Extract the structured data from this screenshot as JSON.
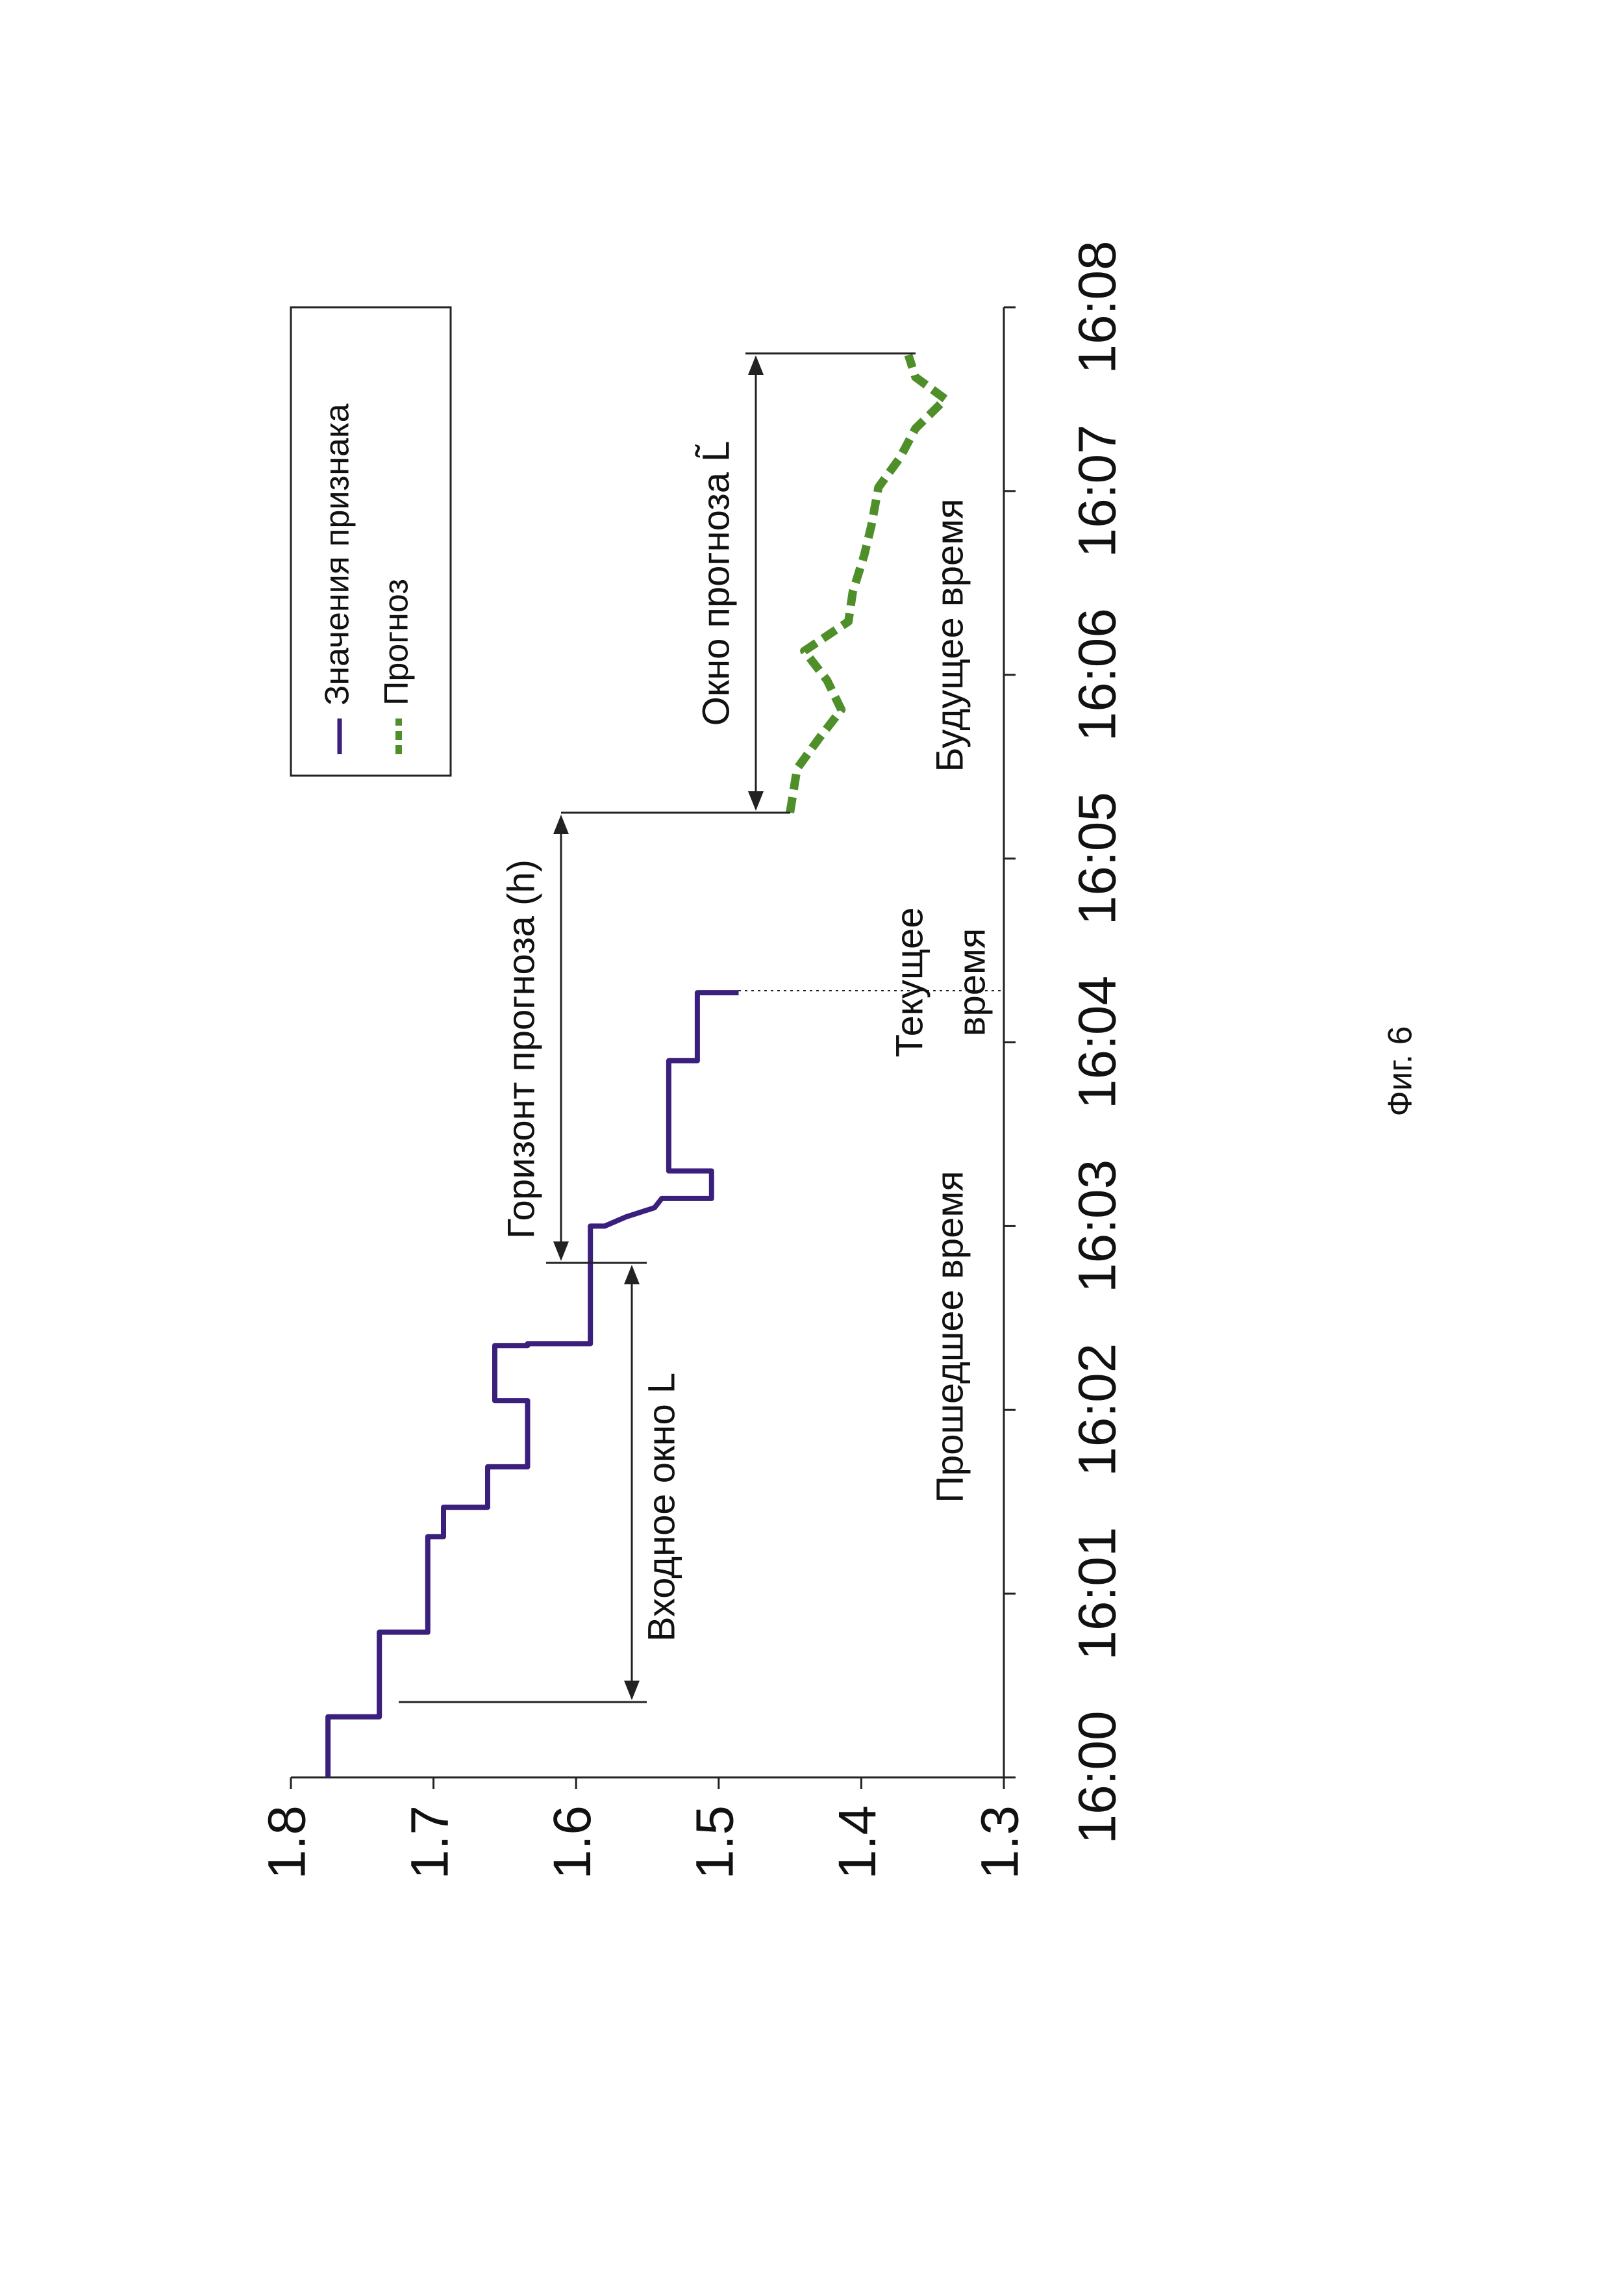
{
  "chart_data": {
    "type": "line",
    "xlim": [
      0,
      8
    ],
    "xticks": [
      {
        "value": 0,
        "label": "16:00"
      },
      {
        "value": 1,
        "label": "16:01"
      },
      {
        "value": 2,
        "label": "16:02"
      },
      {
        "value": 3,
        "label": "16:03"
      },
      {
        "value": 4,
        "label": "16:04"
      },
      {
        "value": 5,
        "label": "16:05"
      },
      {
        "value": 6,
        "label": "16:06"
      },
      {
        "value": 7,
        "label": "16:07"
      },
      {
        "value": 8,
        "label": "16:08"
      }
    ],
    "ylim": [
      1.3,
      1.8
    ],
    "yticks": [
      1.8,
      1.7,
      1.6,
      1.5,
      1.4,
      1.3
    ],
    "legend": "upper right",
    "series": [
      {
        "name": "Значения признака",
        "color": "#3a1f7d",
        "dashed": false,
        "x": [
          0,
          0.33,
          0.33,
          0.79,
          0.79,
          1.31,
          1.31,
          1.47,
          1.47,
          1.69,
          1.69,
          2.05,
          2.05,
          2.35,
          2.35,
          2.36,
          2.36,
          3.0,
          3.0,
          3.05,
          3.1,
          3.15,
          3.15,
          3.3,
          3.3,
          3.9,
          3.9,
          4.27,
          4.27
        ],
        "values": [
          1.774,
          1.774,
          1.738,
          1.738,
          1.704,
          1.704,
          1.693,
          1.693,
          1.662,
          1.662,
          1.634,
          1.634,
          1.657,
          1.657,
          1.634,
          1.634,
          1.59,
          1.59,
          1.58,
          1.565,
          1.545,
          1.54,
          1.505,
          1.505,
          1.535,
          1.535,
          1.515,
          1.515,
          1.486
        ]
      },
      {
        "name": "Прогноз",
        "color": "#4f8f2a",
        "dashed": true,
        "x": [
          5.25,
          5.49,
          5.65,
          5.81,
          5.97,
          6.13,
          6.29,
          6.45,
          6.65,
          6.81,
          7.02,
          7.18,
          7.34,
          7.5,
          7.62,
          7.74
        ],
        "values": [
          1.45,
          1.445,
          1.43,
          1.414,
          1.424,
          1.44,
          1.409,
          1.406,
          1.398,
          1.393,
          1.388,
          1.373,
          1.362,
          1.341,
          1.362,
          1.367
        ]
      }
    ],
    "annotations": {
      "input_window": "Входное окно L",
      "horizon": "Горизонт прогноза (h)",
      "forecast_window": "Окно прогноза L̃",
      "past": "Прошедшее время",
      "current": [
        "Текущее",
        "время"
      ],
      "future": "Будущее время"
    },
    "caption": "Фиг. 6"
  }
}
